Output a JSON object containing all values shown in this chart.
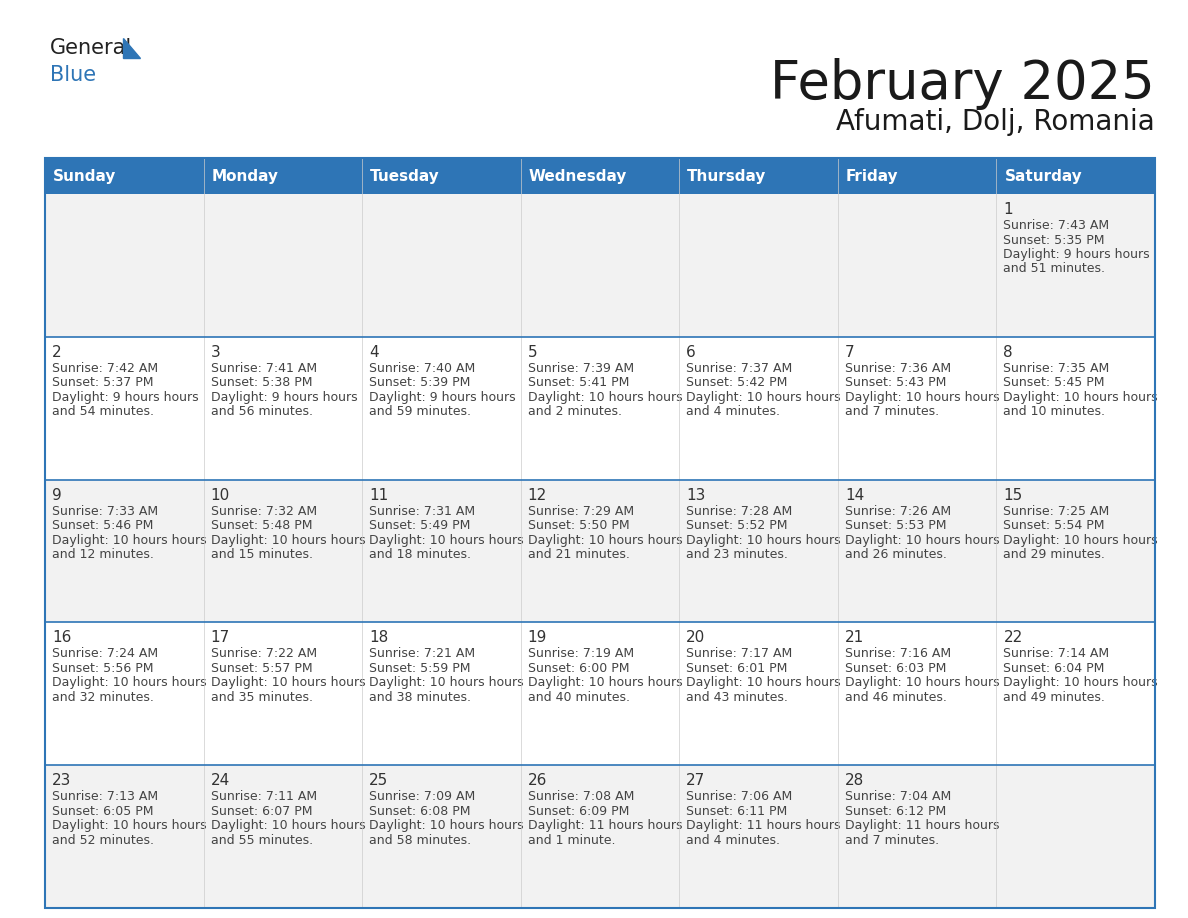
{
  "title": "February 2025",
  "subtitle": "Afumati, Dolj, Romania",
  "header_bg": "#2E75B6",
  "header_text_color": "#FFFFFF",
  "day_number_color": "#333333",
  "info_text_color": "#444444",
  "border_color": "#2E75B6",
  "logo_general_color": "#222222",
  "logo_blue_color": "#2E75B6",
  "logo_triangle_color": "#2E75B6",
  "days_of_week": [
    "Sunday",
    "Monday",
    "Tuesday",
    "Wednesday",
    "Thursday",
    "Friday",
    "Saturday"
  ],
  "weeks": [
    [
      {
        "day": "",
        "sunrise": "",
        "sunset": "",
        "daylight": ""
      },
      {
        "day": "",
        "sunrise": "",
        "sunset": "",
        "daylight": ""
      },
      {
        "day": "",
        "sunrise": "",
        "sunset": "",
        "daylight": ""
      },
      {
        "day": "",
        "sunrise": "",
        "sunset": "",
        "daylight": ""
      },
      {
        "day": "",
        "sunrise": "",
        "sunset": "",
        "daylight": ""
      },
      {
        "day": "",
        "sunrise": "",
        "sunset": "",
        "daylight": ""
      },
      {
        "day": "1",
        "sunrise": "7:43 AM",
        "sunset": "5:35 PM",
        "daylight": "9 hours and 51 minutes."
      }
    ],
    [
      {
        "day": "2",
        "sunrise": "7:42 AM",
        "sunset": "5:37 PM",
        "daylight": "9 hours and 54 minutes."
      },
      {
        "day": "3",
        "sunrise": "7:41 AM",
        "sunset": "5:38 PM",
        "daylight": "9 hours and 56 minutes."
      },
      {
        "day": "4",
        "sunrise": "7:40 AM",
        "sunset": "5:39 PM",
        "daylight": "9 hours and 59 minutes."
      },
      {
        "day": "5",
        "sunrise": "7:39 AM",
        "sunset": "5:41 PM",
        "daylight": "10 hours and 2 minutes."
      },
      {
        "day": "6",
        "sunrise": "7:37 AM",
        "sunset": "5:42 PM",
        "daylight": "10 hours and 4 minutes."
      },
      {
        "day": "7",
        "sunrise": "7:36 AM",
        "sunset": "5:43 PM",
        "daylight": "10 hours and 7 minutes."
      },
      {
        "day": "8",
        "sunrise": "7:35 AM",
        "sunset": "5:45 PM",
        "daylight": "10 hours and 10 minutes."
      }
    ],
    [
      {
        "day": "9",
        "sunrise": "7:33 AM",
        "sunset": "5:46 PM",
        "daylight": "10 hours and 12 minutes."
      },
      {
        "day": "10",
        "sunrise": "7:32 AM",
        "sunset": "5:48 PM",
        "daylight": "10 hours and 15 minutes."
      },
      {
        "day": "11",
        "sunrise": "7:31 AM",
        "sunset": "5:49 PM",
        "daylight": "10 hours and 18 minutes."
      },
      {
        "day": "12",
        "sunrise": "7:29 AM",
        "sunset": "5:50 PM",
        "daylight": "10 hours and 21 minutes."
      },
      {
        "day": "13",
        "sunrise": "7:28 AM",
        "sunset": "5:52 PM",
        "daylight": "10 hours and 23 minutes."
      },
      {
        "day": "14",
        "sunrise": "7:26 AM",
        "sunset": "5:53 PM",
        "daylight": "10 hours and 26 minutes."
      },
      {
        "day": "15",
        "sunrise": "7:25 AM",
        "sunset": "5:54 PM",
        "daylight": "10 hours and 29 minutes."
      }
    ],
    [
      {
        "day": "16",
        "sunrise": "7:24 AM",
        "sunset": "5:56 PM",
        "daylight": "10 hours and 32 minutes."
      },
      {
        "day": "17",
        "sunrise": "7:22 AM",
        "sunset": "5:57 PM",
        "daylight": "10 hours and 35 minutes."
      },
      {
        "day": "18",
        "sunrise": "7:21 AM",
        "sunset": "5:59 PM",
        "daylight": "10 hours and 38 minutes."
      },
      {
        "day": "19",
        "sunrise": "7:19 AM",
        "sunset": "6:00 PM",
        "daylight": "10 hours and 40 minutes."
      },
      {
        "day": "20",
        "sunrise": "7:17 AM",
        "sunset": "6:01 PM",
        "daylight": "10 hours and 43 minutes."
      },
      {
        "day": "21",
        "sunrise": "7:16 AM",
        "sunset": "6:03 PM",
        "daylight": "10 hours and 46 minutes."
      },
      {
        "day": "22",
        "sunrise": "7:14 AM",
        "sunset": "6:04 PM",
        "daylight": "10 hours and 49 minutes."
      }
    ],
    [
      {
        "day": "23",
        "sunrise": "7:13 AM",
        "sunset": "6:05 PM",
        "daylight": "10 hours and 52 minutes."
      },
      {
        "day": "24",
        "sunrise": "7:11 AM",
        "sunset": "6:07 PM",
        "daylight": "10 hours and 55 minutes."
      },
      {
        "day": "25",
        "sunrise": "7:09 AM",
        "sunset": "6:08 PM",
        "daylight": "10 hours and 58 minutes."
      },
      {
        "day": "26",
        "sunrise": "7:08 AM",
        "sunset": "6:09 PM",
        "daylight": "11 hours and 1 minute."
      },
      {
        "day": "27",
        "sunrise": "7:06 AM",
        "sunset": "6:11 PM",
        "daylight": "11 hours and 4 minutes."
      },
      {
        "day": "28",
        "sunrise": "7:04 AM",
        "sunset": "6:12 PM",
        "daylight": "11 hours and 7 minutes."
      },
      {
        "day": "",
        "sunrise": "",
        "sunset": "",
        "daylight": ""
      }
    ]
  ]
}
